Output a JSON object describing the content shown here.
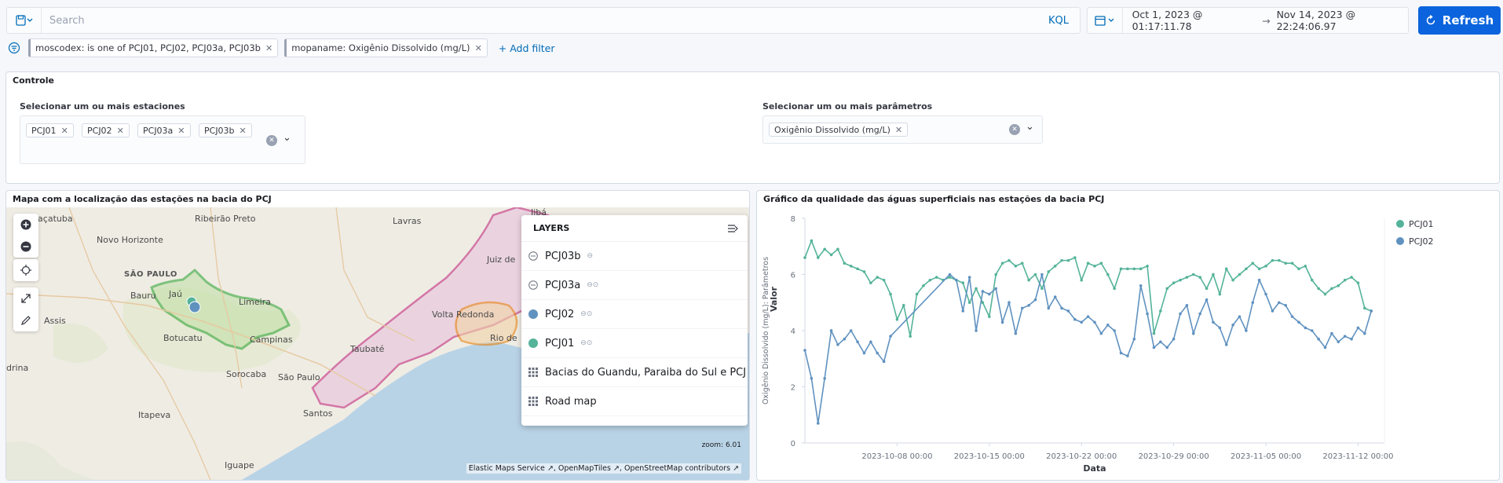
{
  "query": {
    "placeholder": "Search",
    "language": "KQL"
  },
  "time": {
    "start": "Oct 1, 2023 @ 01:17:11.78",
    "arrow": "→",
    "end": "Nov 14, 2023 @ 22:24:06.97"
  },
  "refresh_label": "Refresh",
  "filters": [
    {
      "label": "moscodex: is one of PCJ01, PCJ02, PCJ03a, PCJ03b"
    },
    {
      "label": "mopaname: Oxigênio Dissolvido (mg/L)"
    }
  ],
  "add_filter": "+ Add filter",
  "control": {
    "title": "Controle",
    "stations_label": "Selecionar um ou mais estaciones",
    "stations": [
      "PCJ01",
      "PCJ02",
      "PCJ03a",
      "PCJ03b"
    ],
    "params_label": "Selecionar um ou mais parâmetros",
    "params": [
      "Oxigênio Dissolvido (mg/L)"
    ]
  },
  "map": {
    "title": "Mapa com a localização das estações na bacia do PCJ",
    "layers_title": "LAYERS",
    "layers": [
      {
        "name": "PCJ03b",
        "icon": "eye-closed-icon"
      },
      {
        "name": "PCJ03a",
        "icon": "eye-closed-icon"
      },
      {
        "name": "PCJ02",
        "icon": "circle-icon",
        "color": "#6092c0"
      },
      {
        "name": "PCJ01",
        "icon": "circle-icon",
        "color": "#54b399"
      },
      {
        "name": "Bacias do Guandu, Paraiba do Sul e PCJ",
        "icon": "grid-icon"
      },
      {
        "name": "Road map",
        "icon": "grid-icon"
      }
    ],
    "places": [
      "Araçatuba",
      "Ribeirão Preto",
      "Lavras",
      "Juiz de",
      "Novo Horizonte",
      "SÃO PAULO",
      "Bauru",
      "Jaú",
      "Limeira",
      "Assis",
      "Botucatu",
      "Campinas",
      "Volta Redonda",
      "Rio de",
      "Taubaté",
      "Sorocaba",
      "São Paulo",
      "Itapeva",
      "Santos",
      "Iguape",
      "drina",
      "Jibá"
    ],
    "zoom": "zoom: 6.01",
    "attribution": [
      "Elastic Maps Service",
      "OpenMapTiles",
      "OpenStreetMap contributors"
    ]
  },
  "chart": {
    "title": "Gráfico da qualidade das águas superficiais nas estações da bacia PCJ"
  },
  "chart_data": {
    "type": "line",
    "xlabel": "Data",
    "ylabel": "Valor",
    "ylabel_secondary": "Oxigênio Dissolvido (mg/L): Parâmetros",
    "ylim": [
      0,
      8
    ],
    "yticks": [
      0,
      2,
      4,
      6,
      8
    ],
    "xrange": [
      "2023-10-01",
      "2023-11-14"
    ],
    "xticks": [
      "2023-10-08 00:00",
      "2023-10-15 00:00",
      "2023-10-22 00:00",
      "2023-10-29 00:00",
      "2023-11-05 00:00",
      "2023-11-12 00:00"
    ],
    "legend_position": "right",
    "series": [
      {
        "name": "PCJ01",
        "color": "#54b399",
        "values": [
          [
            "2023-10-01",
            6.6
          ],
          [
            "2023-10-01 12:00",
            7.2
          ],
          [
            "2023-10-02",
            6.6
          ],
          [
            "2023-10-02 12:00",
            6.9
          ],
          [
            "2023-10-03",
            6.7
          ],
          [
            "2023-10-03 12:00",
            6.9
          ],
          [
            "2023-10-04",
            6.4
          ],
          [
            "2023-10-04 12:00",
            6.3
          ],
          [
            "2023-10-05",
            6.2
          ],
          [
            "2023-10-05 12:00",
            6.1
          ],
          [
            "2023-10-06",
            5.7
          ],
          [
            "2023-10-06 12:00",
            5.9
          ],
          [
            "2023-10-07",
            5.8
          ],
          [
            "2023-10-07 12:00",
            5.3
          ],
          [
            "2023-10-08",
            4.4
          ],
          [
            "2023-10-08 12:00",
            4.9
          ],
          [
            "2023-10-09",
            3.8
          ],
          [
            "2023-10-09 12:00",
            5.3
          ],
          [
            "2023-10-10",
            5.6
          ],
          [
            "2023-10-10 12:00",
            5.8
          ],
          [
            "2023-10-11",
            5.9
          ],
          [
            "2023-10-11 12:00",
            5.8
          ],
          [
            "2023-10-12",
            5.9
          ],
          [
            "2023-10-12 12:00",
            5.8
          ],
          [
            "2023-10-13",
            5.7
          ],
          [
            "2023-10-13 12:00",
            5.0
          ],
          [
            "2023-10-14",
            5.5
          ],
          [
            "2023-10-14 12:00",
            5.0
          ],
          [
            "2023-10-15",
            4.5
          ],
          [
            "2023-10-15 12:00",
            6.0
          ],
          [
            "2023-10-16",
            6.4
          ],
          [
            "2023-10-16 12:00",
            6.5
          ],
          [
            "2023-10-17",
            6.3
          ],
          [
            "2023-10-17 12:00",
            6.4
          ],
          [
            "2023-10-18",
            5.8
          ],
          [
            "2023-10-18 12:00",
            6.0
          ],
          [
            "2023-10-19",
            5.5
          ],
          [
            "2023-10-19 12:00",
            6.1
          ],
          [
            "2023-10-20",
            6.3
          ],
          [
            "2023-10-20 12:00",
            6.5
          ],
          [
            "2023-10-21",
            6.5
          ],
          [
            "2023-10-21 12:00",
            6.6
          ],
          [
            "2023-10-22",
            5.8
          ],
          [
            "2023-10-22 12:00",
            6.4
          ],
          [
            "2023-10-23",
            6.3
          ],
          [
            "2023-10-23 12:00",
            6.4
          ],
          [
            "2023-10-24",
            6.0
          ],
          [
            "2023-10-24 12:00",
            5.5
          ],
          [
            "2023-10-25",
            6.2
          ],
          [
            "2023-10-25 12:00",
            6.2
          ],
          [
            "2023-10-26",
            6.2
          ],
          [
            "2023-10-26 12:00",
            6.2
          ],
          [
            "2023-10-27",
            6.3
          ],
          [
            "2023-10-27 12:00",
            3.9
          ],
          [
            "2023-10-28",
            4.7
          ],
          [
            "2023-10-28 12:00",
            5.5
          ],
          [
            "2023-10-29",
            5.7
          ],
          [
            "2023-10-29 12:00",
            5.8
          ],
          [
            "2023-10-30",
            5.9
          ],
          [
            "2023-10-30 12:00",
            6.0
          ],
          [
            "2023-10-31",
            5.9
          ],
          [
            "2023-10-31 12:00",
            5.5
          ],
          [
            "2023-11-01",
            6.0
          ],
          [
            "2023-11-01 12:00",
            5.3
          ],
          [
            "2023-11-02",
            6.2
          ],
          [
            "2023-11-02 12:00",
            5.8
          ],
          [
            "2023-11-03",
            6.0
          ],
          [
            "2023-11-03 12:00",
            6.2
          ],
          [
            "2023-11-04",
            6.4
          ],
          [
            "2023-11-04 12:00",
            6.2
          ],
          [
            "2023-11-05",
            6.3
          ],
          [
            "2023-11-05 12:00",
            6.5
          ],
          [
            "2023-11-06",
            6.5
          ],
          [
            "2023-11-06 12:00",
            6.4
          ],
          [
            "2023-11-07",
            6.4
          ],
          [
            "2023-11-07 12:00",
            6.2
          ],
          [
            "2023-11-08",
            6.3
          ],
          [
            "2023-11-08 12:00",
            5.8
          ],
          [
            "2023-11-09",
            5.5
          ],
          [
            "2023-11-09 12:00",
            5.3
          ],
          [
            "2023-11-10",
            5.5
          ],
          [
            "2023-11-10 12:00",
            5.6
          ],
          [
            "2023-11-11",
            5.8
          ],
          [
            "2023-11-11 12:00",
            5.9
          ],
          [
            "2023-11-12",
            5.7
          ],
          [
            "2023-11-12 12:00",
            4.8
          ],
          [
            "2023-11-13",
            4.7
          ]
        ]
      },
      {
        "name": "PCJ02",
        "color": "#6092c0",
        "values": [
          [
            "2023-10-01",
            3.3
          ],
          [
            "2023-10-01 12:00",
            2.3
          ],
          [
            "2023-10-02",
            0.7
          ],
          [
            "2023-10-02 12:00",
            2.3
          ],
          [
            "2023-10-03",
            4.0
          ],
          [
            "2023-10-03 12:00",
            3.5
          ],
          [
            "2023-10-04",
            3.7
          ],
          [
            "2023-10-04 12:00",
            4.0
          ],
          [
            "2023-10-05",
            3.6
          ],
          [
            "2023-10-05 12:00",
            3.2
          ],
          [
            "2023-10-06",
            3.6
          ],
          [
            "2023-10-06 12:00",
            3.2
          ],
          [
            "2023-10-07",
            2.9
          ],
          [
            "2023-10-07 12:00",
            3.8
          ],
          [
            "2023-10-12",
            6.0
          ],
          [
            "2023-10-12 12:00",
            5.8
          ],
          [
            "2023-10-13",
            4.7
          ],
          [
            "2023-10-13 12:00",
            5.9
          ],
          [
            "2023-10-14",
            4.0
          ],
          [
            "2023-10-14 12:00",
            5.4
          ],
          [
            "2023-10-15",
            5.3
          ],
          [
            "2023-10-15 12:00",
            5.5
          ],
          [
            "2023-10-16",
            4.3
          ],
          [
            "2023-10-16 12:00",
            5.0
          ],
          [
            "2023-10-17",
            3.9
          ],
          [
            "2023-10-17 12:00",
            4.8
          ],
          [
            "2023-10-18",
            4.9
          ],
          [
            "2023-10-18 12:00",
            5.1
          ],
          [
            "2023-10-19",
            6.0
          ],
          [
            "2023-10-19 12:00",
            4.8
          ],
          [
            "2023-10-20",
            5.2
          ],
          [
            "2023-10-20 12:00",
            4.8
          ],
          [
            "2023-10-21",
            4.7
          ],
          [
            "2023-10-21 12:00",
            4.4
          ],
          [
            "2023-10-22",
            4.3
          ],
          [
            "2023-10-22 12:00",
            4.5
          ],
          [
            "2023-10-23",
            4.3
          ],
          [
            "2023-10-23 12:00",
            3.9
          ],
          [
            "2023-10-24",
            4.2
          ],
          [
            "2023-10-24 12:00",
            4.0
          ],
          [
            "2023-10-25",
            3.2
          ],
          [
            "2023-10-25 12:00",
            3.1
          ],
          [
            "2023-10-26",
            3.7
          ],
          [
            "2023-10-26 12:00",
            5.6
          ],
          [
            "2023-10-27",
            4.6
          ],
          [
            "2023-10-27 12:00",
            3.4
          ],
          [
            "2023-10-28",
            3.6
          ],
          [
            "2023-10-28 12:00",
            3.4
          ],
          [
            "2023-10-29",
            3.7
          ],
          [
            "2023-10-29 12:00",
            4.6
          ],
          [
            "2023-10-30",
            4.9
          ],
          [
            "2023-10-30 12:00",
            3.9
          ],
          [
            "2023-10-31",
            4.6
          ],
          [
            "2023-10-31 12:00",
            5.1
          ],
          [
            "2023-11-01",
            4.3
          ],
          [
            "2023-11-01 12:00",
            4.1
          ],
          [
            "2023-11-02",
            3.5
          ],
          [
            "2023-11-02 12:00",
            4.2
          ],
          [
            "2023-11-03",
            4.5
          ],
          [
            "2023-11-03 12:00",
            4.0
          ],
          [
            "2023-11-04",
            5.0
          ],
          [
            "2023-11-04 12:00",
            5.8
          ],
          [
            "2023-11-05",
            5.3
          ],
          [
            "2023-11-05 12:00",
            4.7
          ],
          [
            "2023-11-06",
            5.0
          ],
          [
            "2023-11-06 12:00",
            4.9
          ],
          [
            "2023-11-07",
            4.5
          ],
          [
            "2023-11-07 12:00",
            4.3
          ],
          [
            "2023-11-08",
            4.1
          ],
          [
            "2023-11-08 12:00",
            4.0
          ],
          [
            "2023-11-09",
            3.7
          ],
          [
            "2023-11-09 12:00",
            3.4
          ],
          [
            "2023-11-10",
            3.9
          ],
          [
            "2023-11-10 12:00",
            3.6
          ],
          [
            "2023-11-11",
            3.8
          ],
          [
            "2023-11-11 12:00",
            3.7
          ],
          [
            "2023-11-12",
            4.1
          ],
          [
            "2023-11-12 12:00",
            3.9
          ],
          [
            "2023-11-13",
            4.7
          ]
        ]
      }
    ]
  }
}
